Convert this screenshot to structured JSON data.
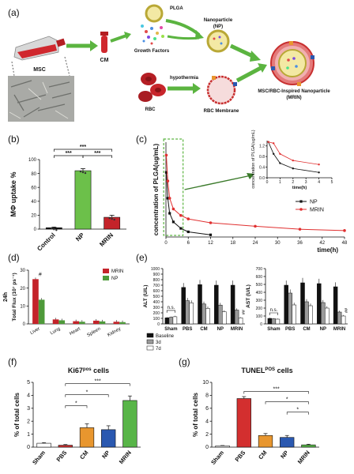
{
  "panel_labels": [
    "(a)",
    "(b)",
    "(c)",
    "(d)",
    "(e)",
    "(f)",
    "(g)"
  ],
  "schematic": {
    "plga": "PLGA",
    "nanoparticle": "Nanoparticle",
    "np": "(NP)",
    "msc": "MSC",
    "cm": "CM",
    "growth_factors": "Growth Factors",
    "hypothermia": "hypothermia",
    "rbc": "RBC",
    "rbc_membrane": "RBC Membrane",
    "mrin_title": "MSC/RBC-Inspired Nanoparticle",
    "mrin_abbrev": "(MRIN)"
  },
  "chart_data": [
    {
      "id": "b",
      "type": "bar",
      "ylabel": "MΦ uptake %",
      "categories": [
        "Control",
        "NP",
        "MRIN"
      ],
      "values": [
        2,
        84,
        17
      ],
      "errors": [
        1,
        3,
        3
      ],
      "colors": [
        "#111111",
        "#6cc04a",
        "#c4232a"
      ],
      "yticks": [
        0,
        20,
        40,
        60,
        80,
        100
      ],
      "ylim": [
        0,
        100
      ],
      "significance": [
        "***",
        "***",
        "***"
      ]
    },
    {
      "id": "c",
      "type": "line",
      "ylabel": "concentration of PLGA(ug/mL)",
      "xlabel": "time(h)",
      "xticks": [
        0,
        6,
        12,
        18,
        24,
        30,
        36,
        42,
        48
      ],
      "xlim": [
        0,
        48
      ],
      "ylim": [
        0,
        2.2
      ],
      "series": [
        {
          "name": "NP",
          "color": "#111111",
          "x": [
            0.1,
            0.5,
            1,
            2,
            4,
            6,
            12
          ],
          "y": [
            1.5,
            0.9,
            0.55,
            0.35,
            0.2,
            0.12,
            0.05
          ]
        },
        {
          "name": "MRIN",
          "color": "#e03030",
          "x": [
            0.1,
            0.5,
            1,
            2,
            4,
            6,
            12,
            24,
            36,
            48
          ],
          "y": [
            1.9,
            1.3,
            0.9,
            0.65,
            0.5,
            0.42,
            0.33,
            0.25,
            0.18,
            0.15
          ]
        }
      ],
      "inset": {
        "ylabel": "concentration of PLGA(ug/mL)",
        "xlabel": "time(h)",
        "xticks": [
          0,
          1,
          2,
          3,
          4,
          5
        ],
        "yticks": [
          0.0,
          0.4,
          0.8,
          1.2
        ],
        "ytick_labels": [
          "0.0",
          "0.4",
          "0.8",
          "1.2"
        ],
        "xlim": [
          0,
          5
        ],
        "ylim": [
          0,
          1.4
        ]
      }
    },
    {
      "id": "d",
      "type": "bar",
      "ylabel": "Total Flux (10⁷ ps⁻¹)",
      "side_label": "24h",
      "categories": [
        "Liver",
        "Lung",
        "Heart",
        "Spleen",
        "Kidney"
      ],
      "series": [
        {
          "name": "MRIN",
          "color": "#c4232a",
          "values": [
            25,
            2.5,
            1.5,
            1.8,
            1.2
          ]
        },
        {
          "name": "NP",
          "color": "#4e9a3a",
          "values": [
            13.5,
            2,
            1.2,
            1.4,
            1
          ]
        }
      ],
      "yticks": [
        0,
        10,
        20,
        30
      ],
      "ylim": [
        0,
        30
      ],
      "annotation": "#"
    },
    {
      "id": "e1",
      "type": "bar",
      "ylabel": "ALT (U/L)",
      "categories": [
        "Sham",
        "PBS",
        "CM",
        "NP",
        "MRIN"
      ],
      "series": [
        {
          "name": "Baseline",
          "color": "#111111",
          "values": [
            110,
            660,
            710,
            700,
            700
          ]
        },
        {
          "name": "3d",
          "color": "#9a9a9a",
          "values": [
            120,
            420,
            360,
            340,
            250
          ]
        },
        {
          "name": "7d",
          "color": "#ffffff",
          "values": [
            130,
            380,
            280,
            220,
            110
          ]
        }
      ],
      "yticks": [
        0,
        100,
        200,
        300,
        400,
        500,
        600,
        700,
        800,
        900,
        1000
      ],
      "ylim": [
        0,
        1000
      ],
      "ns": "n.s.",
      "annotation": "##"
    },
    {
      "id": "e2",
      "type": "bar",
      "ylabel": "AST (U/L)",
      "categories": [
        "Sham",
        "PBS",
        "CM",
        "NP",
        "MRIN"
      ],
      "series": [
        {
          "name": "Baseline",
          "color": "#111111",
          "values": [
            70,
            490,
            520,
            510,
            470
          ]
        },
        {
          "name": "3d",
          "color": "#9a9a9a",
          "values": [
            65,
            390,
            280,
            270,
            150
          ]
        },
        {
          "name": "7d",
          "color": "#ffffff",
          "values": [
            60,
            240,
            230,
            200,
            100
          ]
        }
      ],
      "yticks": [
        0,
        100,
        200,
        300,
        400,
        500,
        600,
        700
      ],
      "ylim": [
        0,
        700
      ],
      "ns": "n.s.",
      "annotation": "##"
    },
    {
      "id": "f",
      "type": "bar",
      "title": "Ki67",
      "title_sup": "pos",
      "title_rest": " cells",
      "ylabel": "% of total cells",
      "categories": [
        "Sham",
        "PBS",
        "CM",
        "NP",
        "MRIN"
      ],
      "values": [
        0.3,
        0.15,
        1.5,
        1.35,
        3.6
      ],
      "errors": [
        0.05,
        0.05,
        0.3,
        0.3,
        0.35
      ],
      "colors": [
        "#ffffff",
        "#d32f2f",
        "#e8962e",
        "#2a58b0",
        "#58b548"
      ],
      "yticks": [
        0,
        1,
        2,
        3,
        4,
        5
      ],
      "ylim": [
        0,
        5
      ],
      "brackets": [
        {
          "from": 1,
          "to": 4,
          "label": "***"
        },
        {
          "from": 1,
          "to": 3,
          "label": "*"
        },
        {
          "from": 1,
          "to": 2,
          "label": "*"
        }
      ]
    },
    {
      "id": "g",
      "type": "bar",
      "title": "TUNEL",
      "title_sup": "POS",
      "title_rest": " cells",
      "ylabel": "% of total cells",
      "categories": [
        "Sham",
        "PBS",
        "CM",
        "NP",
        "MRIN"
      ],
      "values": [
        0.2,
        7.5,
        1.8,
        1.5,
        0.35
      ],
      "errors": [
        0.05,
        0.3,
        0.3,
        0.3,
        0.1
      ],
      "colors": [
        "#ffffff",
        "#d32f2f",
        "#e8962e",
        "#2a58b0",
        "#58b548"
      ],
      "yticks": [
        0,
        2,
        4,
        6,
        8,
        10
      ],
      "ylim": [
        0,
        10
      ],
      "brackets": [
        {
          "from": 1,
          "to": 4,
          "label": "***"
        },
        {
          "from": 2,
          "to": 4,
          "label": "*"
        },
        {
          "from": 3,
          "to": 4,
          "label": "*"
        }
      ]
    }
  ]
}
